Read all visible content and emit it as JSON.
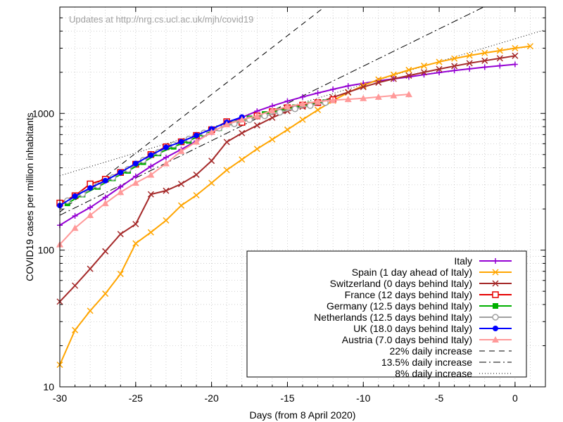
{
  "chart_data": {
    "type": "line",
    "title": "",
    "annotation": "Updates at http://nrg.cs.ucl.ac.uk/mjh/covid19",
    "xlabel": "Days (from 8 April 2020)",
    "ylabel": "COVID19 cases per million inhabitants",
    "xlim": [
      -30,
      2
    ],
    "ylim": [
      10,
      6000
    ],
    "yscale": "log",
    "grid": true,
    "legend_position": "bottom-right",
    "x_ticks": [
      -30,
      -25,
      -20,
      -15,
      -10,
      -5,
      0
    ],
    "x_tick_labels": [
      "-30",
      "-25",
      "-20",
      "-15",
      "-10",
      "-5",
      "0"
    ],
    "y_ticks": [
      10,
      100,
      1000
    ],
    "y_tick_labels": [
      "10",
      "100",
      "1000"
    ],
    "series": [
      {
        "name": "Italy",
        "color": "#9400d3",
        "marker": "plus",
        "x": [
          -30,
          -29,
          -28,
          -27,
          -26,
          -25,
          -24,
          -23,
          -22,
          -21,
          -20,
          -19,
          -18,
          -17,
          -16,
          -15,
          -14,
          -13,
          -12,
          -11,
          -10,
          -9,
          -8,
          -7,
          -6,
          -5,
          -4,
          -3,
          -2,
          -1,
          0
        ],
        "y": [
          152,
          178,
          205,
          243,
          290,
          347,
          410,
          477,
          545,
          628,
          725,
          830,
          935,
          1040,
          1135,
          1230,
          1320,
          1410,
          1500,
          1590,
          1660,
          1730,
          1790,
          1850,
          1920,
          1990,
          2060,
          2120,
          2180,
          2230,
          2285
        ]
      },
      {
        "name": "Spain (1 day ahead of Italy)",
        "color": "#ffa500",
        "marker": "x",
        "x": [
          -30,
          -29,
          -28,
          -27,
          -26,
          -25,
          -24,
          -23,
          -22,
          -21,
          -20,
          -19,
          -18,
          -17,
          -16,
          -15,
          -14,
          -13,
          -12,
          -11,
          -10,
          -9,
          -8,
          -7,
          -6,
          -5,
          -4,
          -3,
          -2,
          -1,
          0,
          1
        ],
        "y": [
          14.5,
          26,
          36,
          48,
          67,
          112,
          135,
          165,
          212,
          252,
          310,
          385,
          460,
          550,
          645,
          760,
          900,
          1060,
          1240,
          1420,
          1600,
          1770,
          1920,
          2080,
          2230,
          2380,
          2520,
          2650,
          2770,
          2880,
          3000,
          3100
        ]
      },
      {
        "name": "Switzerland (0 days behind Italy)",
        "color": "#a52a2a",
        "marker": "x",
        "x": [
          -30,
          -29,
          -28,
          -27,
          -26,
          -25,
          -24,
          -23,
          -22,
          -21,
          -20,
          -19,
          -18,
          -17,
          -16,
          -15,
          -14,
          -13,
          -12,
          -11,
          -10,
          -9,
          -8,
          -7,
          -6,
          -5,
          -4,
          -3,
          -2,
          -1,
          0
        ],
        "y": [
          42,
          55,
          73,
          98,
          131,
          155,
          256,
          272,
          305,
          356,
          450,
          618,
          718,
          818,
          930,
          1040,
          1120,
          1200,
          1310,
          1430,
          1560,
          1680,
          1790,
          1890,
          2000,
          2110,
          2220,
          2330,
          2430,
          2530,
          2640
        ]
      },
      {
        "name": "France (12 days behind Italy)",
        "color": "#e60000",
        "marker": "open-square",
        "x": [
          -30,
          -29,
          -28,
          -27,
          -26,
          -25,
          -24,
          -23,
          -22,
          -21,
          -20,
          -19,
          -18,
          -17,
          -16,
          -15,
          -14,
          -13,
          -12
        ],
        "y": [
          221,
          250,
          305,
          330,
          370,
          425,
          500,
          570,
          620,
          690,
          760,
          870,
          860,
          960,
          1030,
          1100,
          1150,
          1200,
          1260
        ]
      },
      {
        "name": "Germany (12.5 days behind Italy)",
        "color": "#00b000",
        "marker": "filled-square",
        "x": [
          -29.5,
          -28.5,
          -27.5,
          -26.5,
          -25.5,
          -24.5,
          -23.5,
          -22.5,
          -21.5,
          -20.5,
          -19.5,
          -18.5,
          -17.5,
          -16.5,
          -15.5,
          -14.5,
          -13.5,
          -12.5
        ],
        "y": [
          220,
          255,
          290,
          335,
          380,
          440,
          510,
          570,
          630,
          710,
          780,
          850,
          920,
          990,
          1050,
          1110,
          1160,
          1210
        ]
      },
      {
        "name": "Netherlands (12.5 days behind Italy)",
        "color": "#a0a0a0",
        "marker": "open-circle",
        "x": [
          -29.5,
          -28.5,
          -27.5,
          -26.5,
          -25.5,
          -24.5,
          -23.5,
          -22.5,
          -21.5,
          -20.5,
          -19.5,
          -18.5,
          -17.5,
          -16.5,
          -15.5,
          -14.5,
          -13.5,
          -12.5
        ],
        "y": [
          230,
          258,
          297,
          340,
          390,
          455,
          520,
          590,
          650,
          720,
          780,
          840,
          900,
          960,
          1020,
          1080,
          1140,
          1200
        ]
      },
      {
        "name": "UK (18.0 days behind Italy)",
        "color": "#0000ff",
        "marker": "filled-circle",
        "x": [
          -30,
          -29,
          -28,
          -27,
          -26,
          -25,
          -24,
          -23,
          -22,
          -21,
          -20,
          -19,
          -18
        ],
        "y": [
          212,
          248,
          285,
          322,
          370,
          430,
          495,
          565,
          620,
          690,
          770,
          860,
          940
        ]
      },
      {
        "name": "Austria (7.0 days behind Italy)",
        "color": "#ff9999",
        "marker": "filled-triangle",
        "x": [
          -30,
          -29,
          -28,
          -27,
          -26,
          -25,
          -24,
          -23,
          -22,
          -21,
          -20,
          -19,
          -18,
          -17,
          -16,
          -15,
          -14,
          -13,
          -12,
          -11,
          -10,
          -9,
          -8,
          -7
        ],
        "y": [
          110,
          145,
          180,
          220,
          265,
          310,
          355,
          430,
          530,
          620,
          730,
          830,
          900,
          960,
          1050,
          1120,
          1175,
          1220,
          1250,
          1270,
          1290,
          1320,
          1350,
          1380
        ]
      }
    ],
    "reference_lines": [
      {
        "name": "22% daily increase",
        "style": "dashed",
        "x": [
          -30,
          -6
        ],
        "y": [
          190,
          22000
        ]
      },
      {
        "name": "13.5% daily increase",
        "style": "dash-dot",
        "x": [
          -30,
          2
        ],
        "y": [
          180,
          10000
        ]
      },
      {
        "name": "8% daily increase",
        "style": "dotted",
        "x": [
          -30,
          2
        ],
        "y": [
          350,
          4100
        ]
      }
    ]
  }
}
